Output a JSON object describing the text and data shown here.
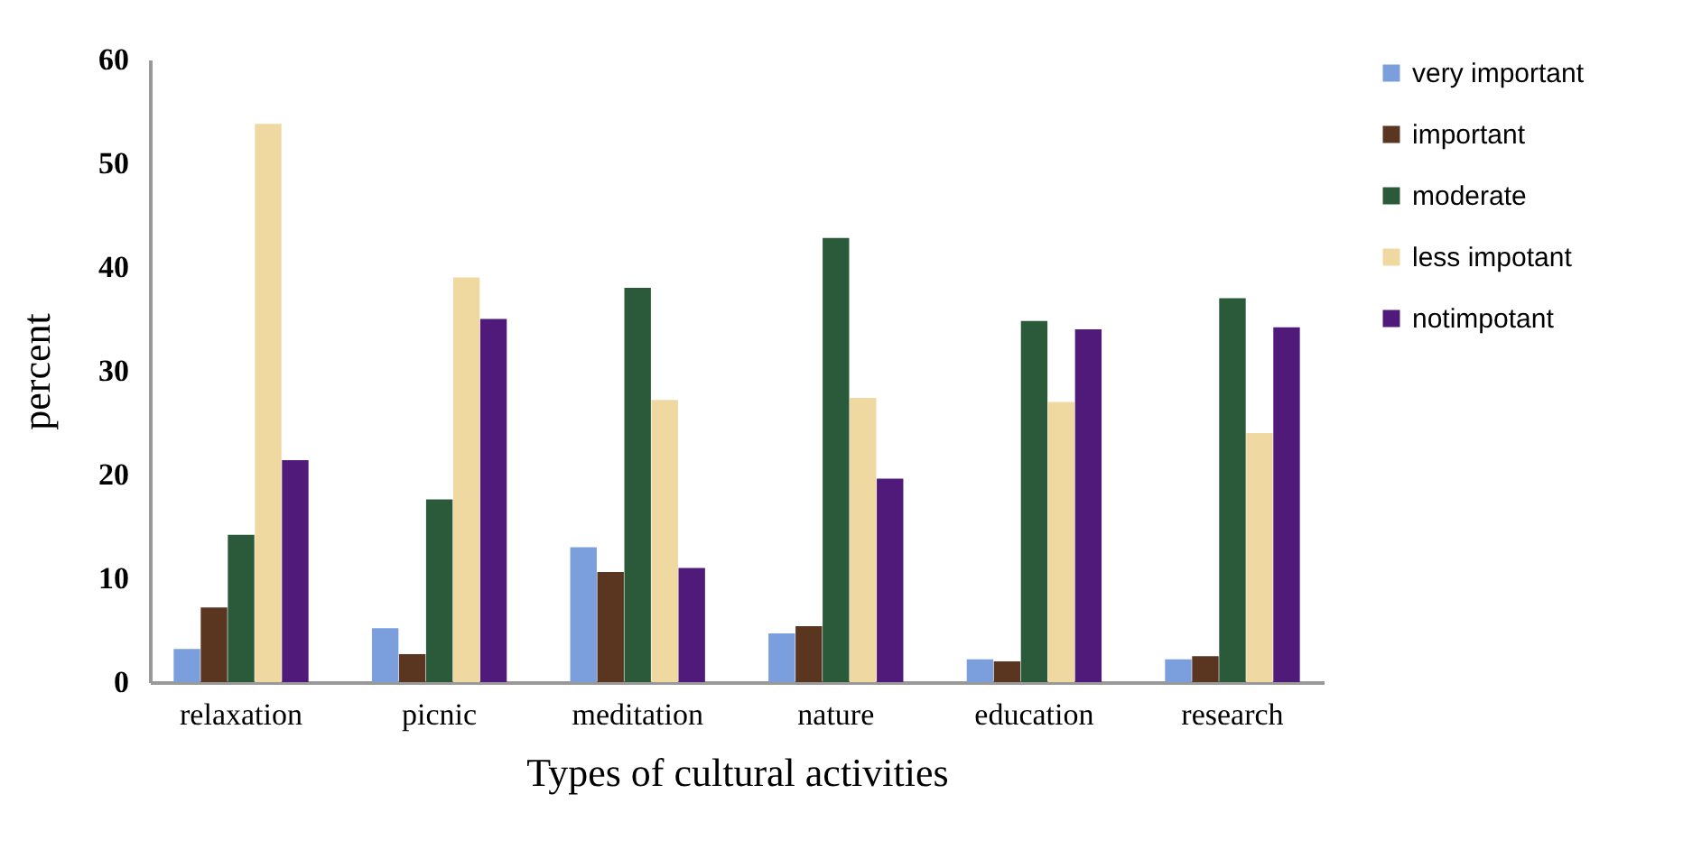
{
  "chart_data": {
    "type": "bar",
    "xlabel": "Types of cultural activities",
    "ylabel": "percent",
    "categories": [
      "relaxation",
      "picnic",
      "meditation",
      "nature",
      "education",
      "research"
    ],
    "series": [
      {
        "name": "very important",
        "color": "#7b9fdc",
        "values": [
          3.2,
          5.2,
          13,
          4.7,
          2.2,
          2.2
        ]
      },
      {
        "name": "important",
        "color": "#5a3520",
        "values": [
          7.2,
          2.7,
          10.6,
          5.4,
          2,
          2.5
        ]
      },
      {
        "name": "moderate",
        "color": "#2a5a3a",
        "values": [
          14.2,
          17.6,
          38,
          42.8,
          34.8,
          37
        ]
      },
      {
        "name": "less impotant",
        "color": "#f0d9a0",
        "values": [
          53.8,
          39,
          27.2,
          27.4,
          27,
          24
        ]
      },
      {
        "name": "notimpotant",
        "color": "#4f1a7a",
        "values": [
          21.4,
          35,
          11,
          19.6,
          34,
          34.2
        ]
      }
    ],
    "ylim": [
      0,
      60
    ],
    "yticks": [
      0,
      10,
      20,
      30,
      40,
      50,
      60
    ],
    "legend": "right"
  }
}
